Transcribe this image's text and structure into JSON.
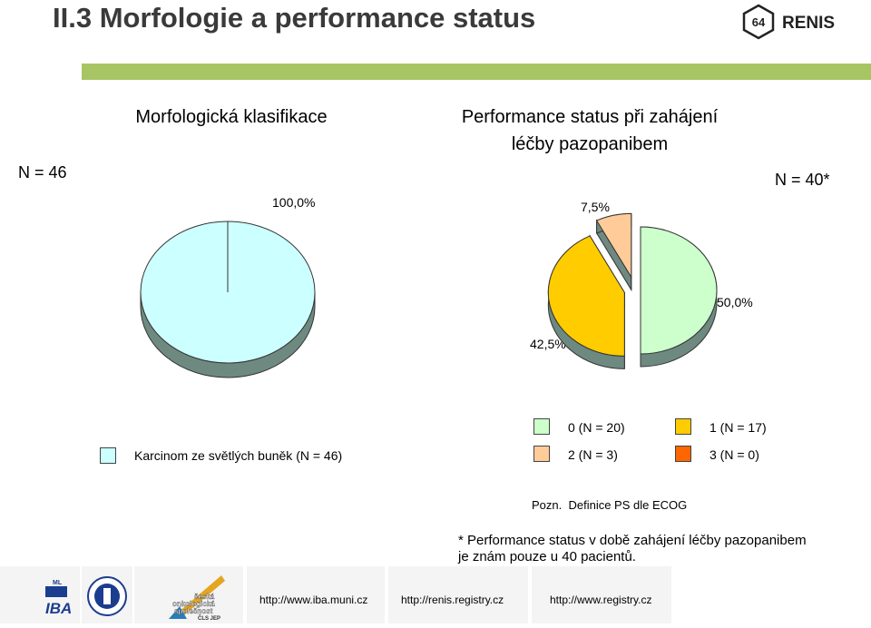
{
  "title": "II.3 Morfologie a performance status",
  "logo": {
    "number": "64",
    "text": "RENIS"
  },
  "colors": {
    "accent_bar": "#a8c564",
    "title_dark": "#3a3a3a"
  },
  "chart_data": [
    {
      "type": "pie",
      "title": "Morfologická klasifikace",
      "n_label": "N = 46",
      "slices": [
        {
          "name": "Karcinom ze světlých buněk (N = 46)",
          "value": 100.0,
          "label": "100,0%",
          "color": "#ccffff"
        }
      ],
      "legend": "bottom"
    },
    {
      "type": "pie",
      "title_lines": [
        "Performance status při zahájení",
        "léčby pazopanibem"
      ],
      "n_label": "N = 40*",
      "slices": [
        {
          "name": "0 (N = 20)",
          "value": 50.0,
          "label": "50,0%",
          "color": "#ccffcc"
        },
        {
          "name": "1 (N = 17)",
          "value": 42.5,
          "label": "42,5%",
          "color": "#ffcc00"
        },
        {
          "name": "2 (N = 3)",
          "value": 7.5,
          "label": "7,5%",
          "color": "#ffcc99"
        },
        {
          "name": "3 (N = 0)",
          "value": 0.0,
          "label": "",
          "color": "#ff6600"
        }
      ],
      "legend": "bottom"
    }
  ],
  "notes": {
    "pozn": "Pozn.  Definice PS dle ECOG",
    "line1": "* Performance status v době zahájení léčby pazopanibem",
    "line2": "je znám pouze u 40 pacientů."
  },
  "footer": {
    "links": [
      "http://www.iba.muni.cz",
      "http://renis.registry.cz",
      "http://www.registry.cz"
    ],
    "logo_iba": "IBA",
    "logo_iba_sup": "ML",
    "logo_cos_lines": [
      "česká",
      "onkologická",
      "společnost",
      "ČLS JEP"
    ]
  }
}
